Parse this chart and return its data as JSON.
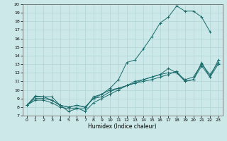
{
  "xlabel": "Humidex (Indice chaleur)",
  "bg_color": "#cce8e8",
  "line_color": "#1a6b6b",
  "grid_color": "#b0d4d4",
  "xlim": [
    -0.5,
    23.5
  ],
  "ylim": [
    7,
    20
  ],
  "xticks": [
    0,
    1,
    2,
    3,
    4,
    5,
    6,
    7,
    8,
    9,
    10,
    11,
    12,
    13,
    14,
    15,
    16,
    17,
    18,
    19,
    20,
    21,
    22,
    23
  ],
  "yticks": [
    7,
    8,
    9,
    10,
    11,
    12,
    13,
    14,
    15,
    16,
    17,
    18,
    19,
    20
  ],
  "lines": [
    {
      "x": [
        0,
        1,
        2,
        3,
        4,
        5,
        6,
        7,
        8,
        9,
        10,
        11,
        12,
        13,
        14,
        15,
        16,
        17,
        18,
        19,
        20,
        21,
        22
      ],
      "y": [
        8.2,
        9.3,
        9.2,
        9.2,
        8.2,
        7.5,
        7.8,
        7.8,
        9.2,
        9.5,
        10.2,
        11.2,
        13.2,
        13.5,
        14.8,
        16.2,
        17.8,
        18.5,
        19.8,
        19.2,
        19.2,
        18.5,
        16.8
      ]
    },
    {
      "x": [
        0,
        1,
        2,
        3,
        4,
        5,
        6,
        7,
        8,
        9,
        10,
        11,
        12,
        13,
        14,
        15,
        16,
        17,
        18,
        19,
        20,
        21,
        22,
        23
      ],
      "y": [
        8.2,
        9.2,
        9.2,
        8.8,
        8.2,
        8.0,
        8.2,
        8.0,
        9.0,
        9.5,
        10.0,
        10.2,
        10.5,
        10.8,
        11.0,
        11.2,
        11.5,
        11.8,
        12.2,
        11.0,
        11.2,
        13.2,
        11.5,
        13.5
      ]
    },
    {
      "x": [
        0,
        1,
        2,
        3,
        4,
        5,
        6,
        7,
        8,
        9,
        10,
        11,
        12,
        13,
        14,
        15,
        16,
        17,
        18,
        19,
        20,
        21,
        22,
        23
      ],
      "y": [
        8.2,
        9.0,
        9.0,
        8.8,
        8.2,
        8.0,
        8.2,
        8.0,
        9.0,
        9.2,
        9.8,
        10.2,
        10.5,
        11.0,
        11.2,
        11.5,
        11.8,
        12.0,
        12.0,
        11.2,
        11.5,
        13.0,
        11.8,
        13.2
      ]
    },
    {
      "x": [
        0,
        1,
        2,
        3,
        4,
        5,
        6,
        7,
        8,
        9,
        10,
        11,
        12,
        13,
        14,
        15,
        16,
        17,
        18,
        19,
        20,
        21,
        22,
        23
      ],
      "y": [
        8.2,
        8.8,
        8.8,
        8.5,
        8.0,
        7.8,
        7.9,
        7.5,
        8.5,
        9.0,
        9.5,
        10.0,
        10.5,
        10.8,
        11.2,
        11.5,
        11.8,
        12.5,
        12.0,
        11.0,
        11.2,
        12.8,
        11.5,
        13.0
      ]
    }
  ]
}
